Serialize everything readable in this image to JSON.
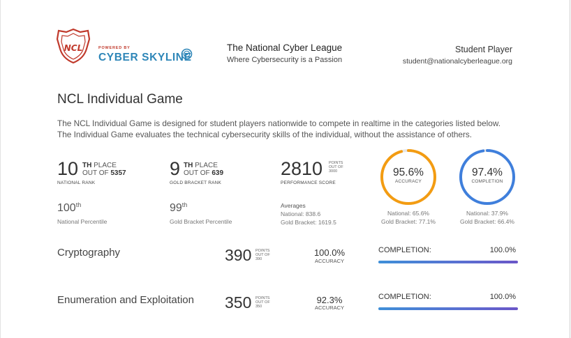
{
  "header": {
    "powered_by": "POWERED BY",
    "brand": "CYBER SKYLINE",
    "logo_text": "NCL",
    "league_title": "The National Cyber League",
    "league_tagline": "Where Cybersecurity is a Passion",
    "player_name": "Student Player",
    "player_email": "student@nationalcyberleague.org"
  },
  "game": {
    "title": "NCL Individual Game",
    "description_line1": "The NCL Individual Game is designed for student players nationwide to compete in realtime in the categories listed below.",
    "description_line2": "The Individual Game evaluates the technical cybersecurity skills of the individual, without the assistance of others."
  },
  "stats": {
    "national_rank": {
      "value": "10",
      "suffix": "TH",
      "place": "PLACE",
      "out_of": "OUT OF",
      "total": "5357",
      "label": "NATIONAL RANK"
    },
    "gold_rank": {
      "value": "9",
      "suffix": "TH",
      "place": "PLACE",
      "out_of": "OUT OF",
      "total": "639",
      "label": "GOLD BRACKET RANK"
    },
    "performance": {
      "value": "2810",
      "points": "POINTS",
      "out_of": "OUT OF",
      "total": "3000",
      "label": "PERFORMANCE SCORE"
    },
    "national_percentile": {
      "value": "100",
      "suffix": "th",
      "label": "National Percentile"
    },
    "gold_percentile": {
      "value": "99",
      "suffix": "th",
      "label": "Gold Bracket Percentile"
    },
    "averages": {
      "title": "Averages",
      "national": "National: 838.6",
      "gold": "Gold Bracket: 1619.5"
    },
    "accuracy": {
      "value": "95.6%",
      "label": "ACCURACY",
      "fraction": 0.956,
      "national": "National: 65.6%",
      "gold": "Gold Bracket: 77.1%"
    },
    "completion": {
      "value": "97.4%",
      "label": "COMPLETION",
      "fraction": 0.974,
      "national": "National: 37.9%",
      "gold": "Gold Bracket: 66.4%"
    }
  },
  "categories": [
    {
      "name": "Cryptography",
      "points": "390",
      "points_label": "POINTS",
      "out_of": "OUT OF",
      "total": "390",
      "accuracy": "100.0%",
      "accuracy_label": "ACCURACY",
      "completion_label": "COMPLETION:",
      "completion": "100.0%",
      "completion_fraction": 1.0
    },
    {
      "name": "Enumeration and Exploitation",
      "points": "350",
      "points_label": "POINTS",
      "out_of": "OUT OF",
      "total": "350",
      "accuracy": "92.3%",
      "accuracy_label": "ACCURACY",
      "completion_label": "COMPLETION:",
      "completion": "100.0%",
      "completion_fraction": 1.0
    }
  ],
  "colors": {
    "accuracy_ring": "#f39c12",
    "completion_ring": "#3f7fdc",
    "ring_track": "#e6e6e6",
    "brand_blue": "#2e86b8",
    "logo_red": "#c0392b"
  }
}
